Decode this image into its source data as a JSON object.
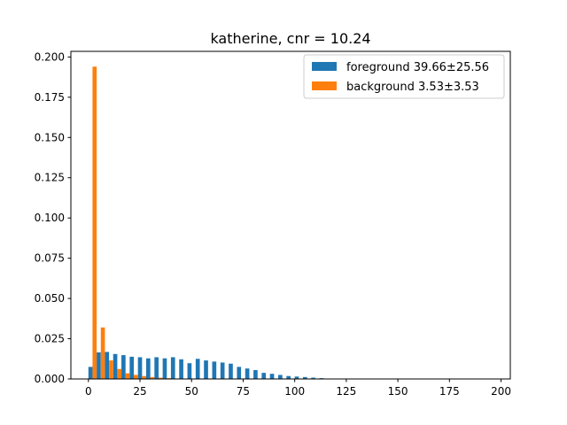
{
  "chart_data": {
    "type": "bar",
    "title": "katherine, cnr = 10.24",
    "xlabel": "",
    "ylabel": "",
    "xlim": [
      -8.5,
      204.5
    ],
    "ylim": [
      0,
      0.2035
    ],
    "xticks": [
      0,
      25,
      50,
      75,
      100,
      125,
      150,
      175,
      200
    ],
    "yticks": [
      0.0,
      0.025,
      0.05,
      0.075,
      0.1,
      0.125,
      0.15,
      0.175,
      0.2
    ],
    "ytick_labels": [
      "0.000",
      "0.025",
      "0.050",
      "0.075",
      "0.100",
      "0.125",
      "0.150",
      "0.175",
      "0.200"
    ],
    "xtick_labels": [
      "0",
      "25",
      "50",
      "75",
      "100",
      "125",
      "150",
      "175",
      "200"
    ],
    "bin_edges": [
      0,
      4,
      8,
      12,
      16,
      20,
      24,
      28,
      32,
      36,
      40,
      44,
      48,
      52,
      56,
      60,
      64,
      68,
      72,
      76,
      80,
      84,
      88,
      92,
      96,
      100,
      104,
      108,
      112,
      116,
      120,
      124,
      128,
      132,
      136,
      140,
      144,
      148,
      152,
      156,
      160,
      164,
      168,
      172,
      176,
      180,
      184,
      188,
      192,
      196
    ],
    "bin_width": 4,
    "grid": false,
    "legend_position": "top-right",
    "series": [
      {
        "name": "foreground 39.66±25.56",
        "color": "#1f77b4",
        "values": [
          0.0075,
          0.0165,
          0.0168,
          0.0155,
          0.0148,
          0.0138,
          0.0135,
          0.0128,
          0.0135,
          0.0128,
          0.0135,
          0.0122,
          0.0098,
          0.0125,
          0.0115,
          0.0108,
          0.0102,
          0.0095,
          0.0075,
          0.0065,
          0.0055,
          0.0038,
          0.0032,
          0.0025,
          0.0018,
          0.0015,
          0.0012,
          0.0008,
          0.0005,
          0.0001,
          0,
          0,
          0,
          0,
          0,
          0,
          0,
          0,
          0,
          0,
          0,
          0,
          0,
          0,
          0,
          0,
          0,
          0,
          0
        ]
      },
      {
        "name": "background 3.53±3.53",
        "color": "#ff7f0e",
        "values": [
          0.194,
          0.032,
          0.0115,
          0.0062,
          0.0035,
          0.0025,
          0.0018,
          0.0012,
          0.0008,
          0.0005,
          0.0003,
          0.0002,
          0.0001,
          0,
          0,
          0,
          0,
          0,
          0,
          0,
          0,
          0,
          0,
          0,
          0,
          0,
          0,
          0,
          0,
          0,
          0,
          0,
          0,
          0,
          0,
          0,
          0,
          0,
          0,
          0,
          0,
          0,
          0,
          0,
          0,
          0,
          0,
          0,
          0
        ]
      }
    ]
  }
}
